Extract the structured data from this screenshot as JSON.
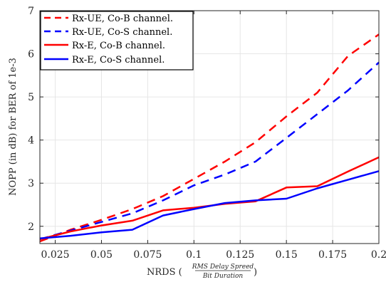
{
  "chart_data": {
    "type": "line",
    "title": "",
    "xlabel": "NRDS (",
    "xlabel_frac_numerator": "RMS Delay Spreed",
    "xlabel_frac_denominator": "Bit Duration",
    "xlabel_close": ")",
    "ylabel": "NOPP (in dB) for BER of 1e-3",
    "xlim": [
      0.0167,
      0.2
    ],
    "ylim": [
      1.6,
      7
    ],
    "xticks": [
      0.025,
      0.05,
      0.075,
      0.1,
      0.125,
      0.15,
      0.175,
      0.2
    ],
    "xtick_labels": [
      "0.025",
      "0.05",
      "0.075",
      "0.1",
      "0.125",
      "0.15",
      "0.175",
      "0.2"
    ],
    "yticks": [
      2,
      3,
      4,
      5,
      6,
      7
    ],
    "ytick_labels": [
      "2",
      "3",
      "4",
      "5",
      "6",
      "7"
    ],
    "grid": true,
    "legend_position": "top-left",
    "series": [
      {
        "name": "Rx-UE, Co-B channel.",
        "color": "#ff0000",
        "dash": true,
        "x": [
          0.0167,
          0.0333,
          0.05,
          0.0667,
          0.0833,
          0.1,
          0.1167,
          0.1333,
          0.15,
          0.1667,
          0.1833,
          0.2
        ],
        "y": [
          1.65,
          1.92,
          2.15,
          2.4,
          2.7,
          3.1,
          3.5,
          3.95,
          4.55,
          5.1,
          5.95,
          6.45
        ]
      },
      {
        "name": "Rx-UE, Co-S channel.",
        "color": "#0000ff",
        "dash": true,
        "x": [
          0.0167,
          0.0333,
          0.05,
          0.0667,
          0.0833,
          0.1,
          0.1167,
          0.1333,
          0.15,
          0.1667,
          0.1833,
          0.2
        ],
        "y": [
          1.7,
          1.9,
          2.1,
          2.3,
          2.6,
          2.95,
          3.2,
          3.5,
          4.05,
          4.6,
          5.15,
          5.8
        ]
      },
      {
        "name": "Rx-E, Co-B channel.",
        "color": "#ff0000",
        "dash": false,
        "x": [
          0.0167,
          0.0333,
          0.05,
          0.0667,
          0.0833,
          0.1,
          0.1167,
          0.1333,
          0.15,
          0.1667,
          0.1833,
          0.2
        ],
        "y": [
          1.7,
          1.88,
          2.02,
          2.13,
          2.37,
          2.43,
          2.52,
          2.58,
          2.9,
          2.93,
          3.27,
          3.6
        ]
      },
      {
        "name": "Rx-E, Co-S channel.",
        "color": "#0000ff",
        "dash": false,
        "x": [
          0.0167,
          0.0333,
          0.05,
          0.0667,
          0.0833,
          0.1,
          0.1167,
          0.1333,
          0.15,
          0.1667,
          0.1833,
          0.2
        ],
        "y": [
          1.72,
          1.78,
          1.86,
          1.92,
          2.25,
          2.4,
          2.54,
          2.6,
          2.64,
          2.88,
          3.08,
          3.28
        ]
      }
    ]
  }
}
